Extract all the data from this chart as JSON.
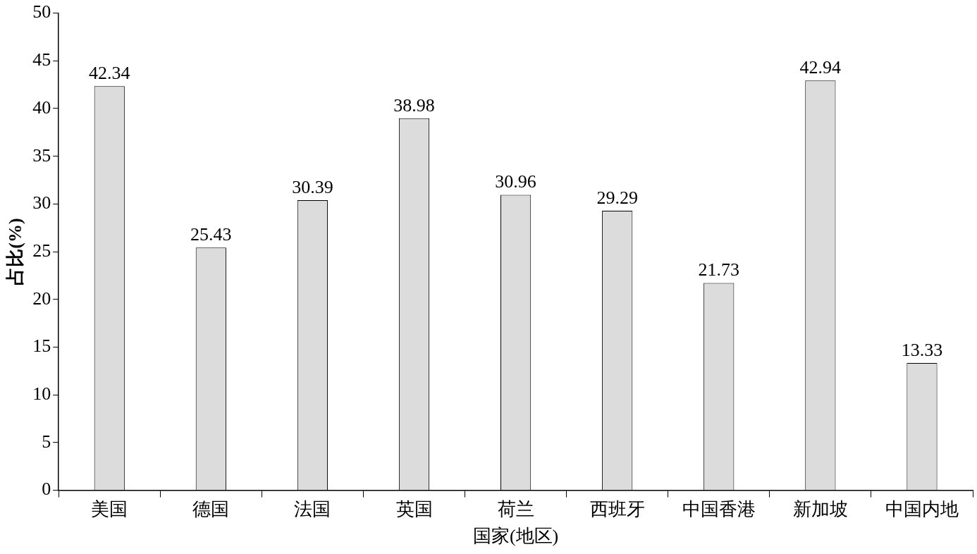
{
  "chart_data": {
    "type": "bar",
    "xlabel": "国家(地区)",
    "ylabel": "占比(%)",
    "categories": [
      "美国",
      "德国",
      "法国",
      "英国",
      "荷兰",
      "西班牙",
      "中国香港",
      "新加坡",
      "中国内地"
    ],
    "values": [
      42.34,
      25.43,
      30.39,
      38.98,
      30.96,
      29.29,
      21.73,
      42.94,
      13.33
    ],
    "color": "#dcdcdc",
    "ylim": [
      0,
      50
    ],
    "yticks": [
      0,
      5,
      10,
      15,
      20,
      25,
      30,
      35,
      40,
      45,
      50
    ],
    "data_labels": true,
    "legend": false
  }
}
